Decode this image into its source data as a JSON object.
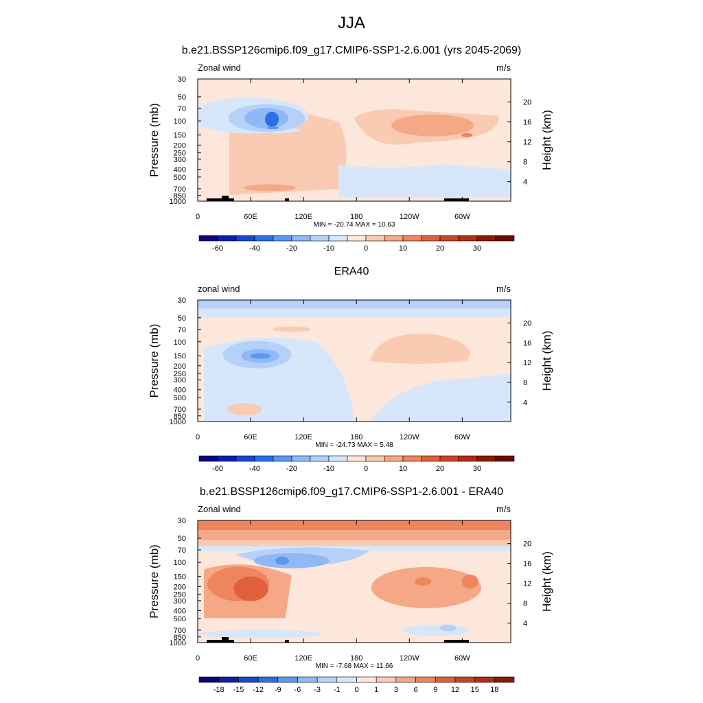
{
  "figure_title": "JJA",
  "chart_data": [
    {
      "type": "heatmap",
      "title": "b.e21.BSSP126cmip6.f09_g17.CMIP6-SSP1-2.6.001 (yrs 2045-2069)",
      "left_label": "Zonal wind",
      "right_label": "m/s",
      "ylabel": "Pressure (mb)",
      "y2label": "Height (km)",
      "x_ticks": [
        "0",
        "60E",
        "120E",
        "180",
        "120W",
        "60W"
      ],
      "y_ticks": [
        "30",
        "50",
        "70",
        "100",
        "150",
        "200",
        "250",
        "300",
        "400",
        "500",
        "700",
        "850",
        "1000"
      ],
      "y2_ticks": [
        "20",
        "16",
        "12",
        "8",
        "4"
      ],
      "stats": "MIN = -20.74  MAX =  10.63",
      "min": -20.74,
      "max": 10.63,
      "colorbar_labels": [
        "-60",
        "-40",
        "-20",
        "-10",
        "0",
        "10",
        "20",
        "30"
      ],
      "colorbar_colors": [
        "#08067a",
        "#0a1fb0",
        "#1747d2",
        "#2b6fe8",
        "#5a97f2",
        "#8fb8f7",
        "#b5d1f8",
        "#d6e7fb",
        "#fde7da",
        "#f9cbb2",
        "#f4a885",
        "#ee855f",
        "#e0603c",
        "#cd4124",
        "#b22c15",
        "#8a1a08",
        "#6a0a02"
      ],
      "terrain": "true"
    },
    {
      "type": "heatmap",
      "title": "ERA40",
      "left_label": "zonal wind",
      "right_label": "m/s",
      "ylabel": "Pressure (mb)",
      "y2label": "Height (km)",
      "x_ticks": [
        "0",
        "60E",
        "120E",
        "180",
        "120W",
        "60W"
      ],
      "y_ticks": [
        "30",
        "50",
        "70",
        "100",
        "150",
        "200",
        "250",
        "300",
        "400",
        "500",
        "700",
        "850",
        "1000"
      ],
      "y2_ticks": [
        "20",
        "16",
        "12",
        "8",
        "4"
      ],
      "stats": "MIN = -24.73  MAX =   5.48",
      "min": -24.73,
      "max": 5.48,
      "colorbar_labels": [
        "-60",
        "-40",
        "-20",
        "-10",
        "0",
        "10",
        "20",
        "30"
      ],
      "colorbar_colors": [
        "#08067a",
        "#0a1fb0",
        "#1747d2",
        "#2b6fe8",
        "#5a97f2",
        "#8fb8f7",
        "#b5d1f8",
        "#d6e7fb",
        "#fde7da",
        "#f9cbb2",
        "#f4a885",
        "#ee855f",
        "#e0603c",
        "#cd4124",
        "#b22c15",
        "#8a1a08",
        "#6a0a02"
      ],
      "terrain": "false"
    },
    {
      "type": "heatmap",
      "title": "b.e21.BSSP126cmip6.f09_g17.CMIP6-SSP1-2.6.001 - ERA40",
      "left_label": "Zonal wind",
      "right_label": "m/s",
      "ylabel": "Pressure (mb)",
      "y2label": "Height (km)",
      "x_ticks": [
        "0",
        "60E",
        "120E",
        "180",
        "120W",
        "60W"
      ],
      "y_ticks": [
        "30",
        "50",
        "70",
        "100",
        "150",
        "200",
        "250",
        "300",
        "400",
        "500",
        "700",
        "850",
        "1000"
      ],
      "y2_ticks": [
        "20",
        "16",
        "12",
        "8",
        "4"
      ],
      "stats": "MIN = -7.68  MAX =  11.66",
      "min": -7.68,
      "max": 11.66,
      "colorbar_labels": [
        "-18",
        "-15",
        "-12",
        "-9",
        "-6",
        "-3",
        "-1",
        "0",
        "1",
        "3",
        "6",
        "9",
        "12",
        "15",
        "18"
      ],
      "colorbar_colors": [
        "#08067a",
        "#0a1fb0",
        "#1747d2",
        "#2b6fe8",
        "#5a97f2",
        "#8fb8f7",
        "#b5d1f8",
        "#d6e7fb",
        "#fde7da",
        "#f9cbb2",
        "#f4a885",
        "#ee855f",
        "#e0603c",
        "#cd4124",
        "#b22c15",
        "#8a1a08"
      ],
      "terrain": "true"
    }
  ]
}
